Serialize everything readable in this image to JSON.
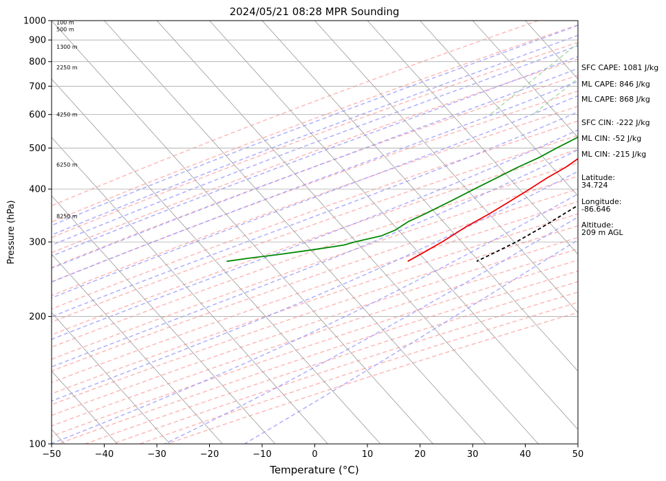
{
  "chart_data": {
    "type": "skew-t",
    "title": "2024/05/21 08:28 MPR Sounding",
    "xlabel": "Temperature (°C)",
    "ylabel": "Pressure (hPa)",
    "xlim": [
      -50,
      50
    ],
    "ylim": [
      1000,
      100
    ],
    "y_scale": "log",
    "x_ticks": [
      "−50",
      "−40",
      "−30",
      "−20",
      "−10",
      "0",
      "10",
      "20",
      "30",
      "40",
      "50"
    ],
    "y_ticks": [
      "100",
      "200",
      "300",
      "400",
      "500",
      "600",
      "700",
      "800",
      "900",
      "1000"
    ],
    "grid": true,
    "altitude_labels": [
      {
        "text": "100 m",
        "p": 990
      },
      {
        "text": "500 m",
        "p": 955
      },
      {
        "text": "1300 m",
        "p": 868
      },
      {
        "text": "2250 m",
        "p": 775
      },
      {
        "text": "4250 m",
        "p": 600
      },
      {
        "text": "6250 m",
        "p": 457
      },
      {
        "text": "8250 m",
        "p": 345
      }
    ],
    "series": [
      {
        "kind": "temperature",
        "color": "#ee0000",
        "points": [
          [
            1000,
            21.0
          ],
          [
            990,
            23.0
          ],
          [
            975,
            24.3
          ],
          [
            955,
            24.8
          ],
          [
            930,
            23.5
          ],
          [
            900,
            21.5
          ],
          [
            875,
            19.0
          ],
          [
            850,
            17.3
          ],
          [
            825,
            15.2
          ],
          [
            800,
            13.9
          ],
          [
            775,
            12.4
          ],
          [
            750,
            11.0
          ],
          [
            725,
            10.3
          ],
          [
            700,
            9.4
          ],
          [
            675,
            8.8
          ],
          [
            650,
            8.0
          ],
          [
            625,
            7.2
          ],
          [
            600,
            6.9
          ],
          [
            575,
            6.2
          ],
          [
            550,
            4.7
          ],
          [
            525,
            3.8
          ],
          [
            500,
            2.7
          ],
          [
            475,
            1.3
          ],
          [
            450,
            0.3
          ],
          [
            425,
            -1.4
          ],
          [
            400,
            -2.8
          ],
          [
            375,
            -4.4
          ],
          [
            350,
            -6.2
          ],
          [
            325,
            -8.5
          ],
          [
            300,
            -10.4
          ],
          [
            285,
            -11.9
          ],
          [
            270,
            -13.6
          ]
        ]
      },
      {
        "kind": "dewpoint",
        "color": "#008800",
        "points": [
          [
            990,
            16.9
          ],
          [
            975,
            15.5
          ],
          [
            960,
            14.3
          ],
          [
            940,
            13.4
          ],
          [
            925,
            13.0
          ],
          [
            900,
            13.0
          ],
          [
            875,
            12.6
          ],
          [
            850,
            11.6
          ],
          [
            825,
            10.6
          ],
          [
            800,
            10.9
          ],
          [
            775,
            11.0
          ],
          [
            750,
            9.6
          ],
          [
            725,
            9.2
          ],
          [
            700,
            8.6
          ],
          [
            675,
            7.7
          ],
          [
            650,
            6.2
          ],
          [
            625,
            4.4
          ],
          [
            600,
            2.1
          ],
          [
            575,
            0.3
          ],
          [
            550,
            -1.2
          ],
          [
            525,
            -2.9
          ],
          [
            500,
            -4.7
          ],
          [
            475,
            -6.4
          ],
          [
            450,
            -8.8
          ],
          [
            425,
            -11.0
          ],
          [
            400,
            -13.3
          ],
          [
            375,
            -15.7
          ],
          [
            350,
            -18.4
          ],
          [
            335,
            -20.3
          ],
          [
            320,
            -21.3
          ],
          [
            310,
            -23.0
          ],
          [
            300,
            -27.0
          ],
          [
            295,
            -28.5
          ],
          [
            290,
            -31.9
          ],
          [
            285,
            -35.5
          ],
          [
            280,
            -39.5
          ],
          [
            275,
            -44.0
          ],
          [
            270,
            -48.0
          ]
        ]
      },
      {
        "kind": "parcel",
        "color": "#000000",
        "dash": "dashed",
        "points": [
          [
            1000,
            21.0
          ],
          [
            975,
            17.8
          ],
          [
            940,
            15.1
          ],
          [
            910,
            13.9
          ],
          [
            875,
            14.8
          ],
          [
            850,
            14.6
          ],
          [
            825,
            14.4
          ],
          [
            800,
            14.4
          ],
          [
            775,
            14.3
          ],
          [
            750,
            14.2
          ],
          [
            725,
            14.2
          ],
          [
            700,
            14.2
          ],
          [
            675,
            14.2
          ],
          [
            650,
            14.3
          ],
          [
            625,
            14.5
          ],
          [
            600,
            14.7
          ],
          [
            575,
            14.6
          ],
          [
            550,
            14.6
          ],
          [
            525,
            14.5
          ],
          [
            500,
            14.3
          ],
          [
            475,
            13.9
          ],
          [
            450,
            13.0
          ],
          [
            425,
            12.3
          ],
          [
            400,
            11.2
          ],
          [
            375,
            9.8
          ],
          [
            350,
            8.0
          ],
          [
            325,
            6.1
          ],
          [
            300,
            3.7
          ],
          [
            285,
            1.7
          ],
          [
            270,
            -0.5
          ]
        ]
      }
    ],
    "background_lines": {
      "isotherm_color": "#999999",
      "dry_adiabat_color": "#ff9999",
      "moist_adiabat_color": "#9999ff",
      "mixing_ratio_color": "#88cc88",
      "isohume_color": "#cc99cc"
    }
  },
  "info_panel": {
    "sfc_cape": "SFC CAPE: 1081 J/kg",
    "ml_cape_1": "ML CAPE: 846 J/kg",
    "ml_cape_2": "ML CAPE: 868 J/kg",
    "sfc_cin": "SFC CIN: -222 J/kg",
    "ml_cin_1": "ML CIN: -52 J/kg",
    "ml_cin_2": "ML CIN: -215 J/kg",
    "latitude": "Latitude:\n34.724",
    "longitude": "Longitude:\n-86.646",
    "altitude": "Altitude:\n209 m AGL"
  }
}
